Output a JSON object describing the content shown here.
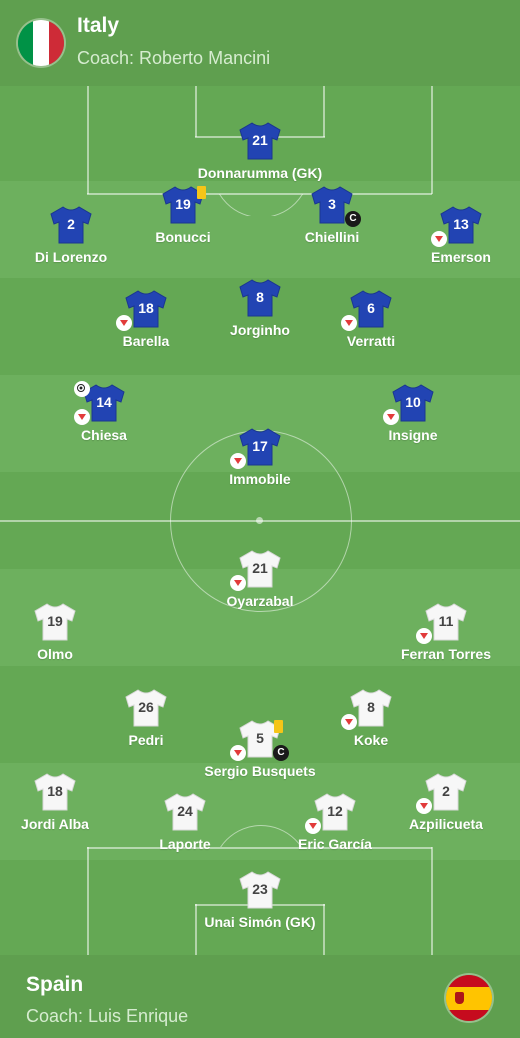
{
  "home_team": {
    "name": "Italy",
    "coach": "Coach: Roberto Mancini",
    "shirt_color": "#2244b3",
    "number_color": "#ffffff",
    "flag_colors": [
      "#009246",
      "#ffffff",
      "#ce2b37"
    ],
    "players": [
      {
        "number": "21",
        "name": "Donnarumma (GK)",
        "icons": []
      },
      {
        "number": "2",
        "name": "Di Lorenzo",
        "icons": []
      },
      {
        "number": "19",
        "name": "Bonucci",
        "icons": [
          "yellow-card"
        ]
      },
      {
        "number": "3",
        "name": "Chiellini",
        "icons": [
          "captain"
        ]
      },
      {
        "number": "13",
        "name": "Emerson",
        "icons": [
          "substituted"
        ]
      },
      {
        "number": "18",
        "name": "Barella",
        "icons": [
          "substituted"
        ]
      },
      {
        "number": "8",
        "name": "Jorginho",
        "icons": []
      },
      {
        "number": "6",
        "name": "Verratti",
        "icons": [
          "substituted"
        ]
      },
      {
        "number": "14",
        "name": "Chiesa",
        "icons": [
          "goal",
          "substituted"
        ]
      },
      {
        "number": "10",
        "name": "Insigne",
        "icons": [
          "substituted"
        ]
      },
      {
        "number": "17",
        "name": "Immobile",
        "icons": [
          "substituted"
        ]
      }
    ]
  },
  "away_team": {
    "name": "Spain",
    "coach": "Coach: Luis Enrique",
    "shirt_color": "#f7f7f7",
    "number_color": "#444444",
    "flag_colors": [
      "#c60b1e",
      "#ffc400"
    ],
    "players": [
      {
        "number": "21",
        "name": "Oyarzabal",
        "icons": [
          "substituted"
        ]
      },
      {
        "number": "19",
        "name": "Olmo",
        "icons": []
      },
      {
        "number": "11",
        "name": "Ferran Torres",
        "icons": [
          "substituted"
        ]
      },
      {
        "number": "26",
        "name": "Pedri",
        "icons": []
      },
      {
        "number": "8",
        "name": "Koke",
        "icons": [
          "substituted"
        ]
      },
      {
        "number": "5",
        "name": "Sergio Busquets",
        "icons": [
          "captain",
          "yellow-card",
          "substituted"
        ]
      },
      {
        "number": "18",
        "name": "Jordi Alba",
        "icons": []
      },
      {
        "number": "24",
        "name": "Laporte",
        "icons": []
      },
      {
        "number": "12",
        "name": "Eric García",
        "icons": [
          "substituted"
        ]
      },
      {
        "number": "2",
        "name": "Azpilicueta",
        "icons": [
          "substituted"
        ]
      },
      {
        "number": "23",
        "name": "Unai Simón (GK)",
        "icons": []
      }
    ]
  },
  "captain_symbol": "C",
  "colors": {
    "pitch_light": "#6db05e",
    "pitch_dark": "#5fa24f",
    "header_bg": "#5f9f4f",
    "sub_arrow": "#e23b3b",
    "yellow_card": "#f5c518"
  }
}
